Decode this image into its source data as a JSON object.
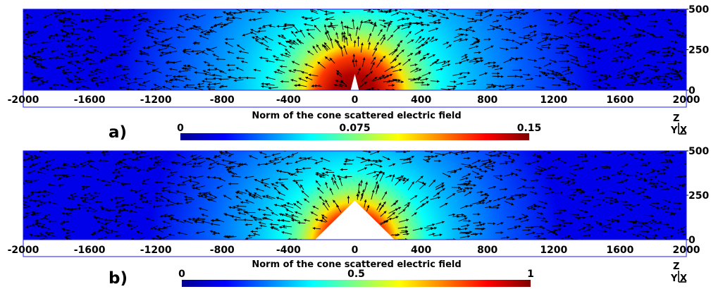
{
  "chart_data": [
    {
      "type": "heatmap",
      "panel_label": "a)",
      "colorbar_title": "Norm of the cone scattered electric field",
      "colorbar_ticks": [
        "0",
        "0.075",
        "0.15"
      ],
      "crange": [
        0,
        0.15
      ],
      "x_ticks": [
        -2000,
        -1600,
        -1200,
        -800,
        -400,
        0,
        400,
        800,
        1200,
        1600,
        2000
      ],
      "y_ticks": [
        0,
        250,
        500
      ],
      "xlim": [
        -2000,
        2000
      ],
      "ylim": [
        0,
        500
      ],
      "cone": {
        "base_half_width": 25,
        "height": 100
      },
      "field_peak": 0.15,
      "field_radius": 560,
      "axes_triad": {
        "z": "Z",
        "y": "Y",
        "x": "X"
      }
    },
    {
      "type": "heatmap",
      "panel_label": "b)",
      "colorbar_title": "Norm of the cone scattered electric field",
      "colorbar_ticks": [
        "0",
        "0.5",
        "1"
      ],
      "crange": [
        0,
        1
      ],
      "x_ticks": [
        -2000,
        -1600,
        -1200,
        -800,
        -400,
        0,
        400,
        800,
        1200,
        1600,
        2000
      ],
      "y_ticks": [
        0,
        250,
        500
      ],
      "xlim": [
        -2000,
        2000
      ],
      "ylim": [
        0,
        500
      ],
      "cone": {
        "base_half_width": 240,
        "height": 220
      },
      "field_peak": 1,
      "field_radius": 480,
      "axes_triad": {
        "z": "Z",
        "y": "Y",
        "x": "X"
      }
    }
  ],
  "colors": {
    "colormap": [
      "#00008f",
      "#0000ff",
      "#0080ff",
      "#00ffff",
      "#80ff80",
      "#ffff00",
      "#ff8000",
      "#ff0000",
      "#800000"
    ],
    "frame": "#1a1aff",
    "arrows": "#000000"
  }
}
